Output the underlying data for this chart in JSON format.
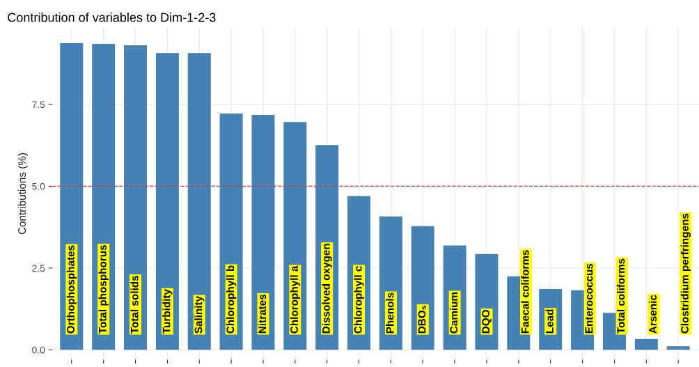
{
  "chart_data": {
    "type": "bar",
    "title": "Contribution of variables to Dim-1-2-3",
    "ylabel": "Contributions (%)",
    "categories": [
      "Orthophosphates",
      "Total phosphorus",
      "Total solids",
      "Turbidity",
      "Salinity",
      "Chlorophyll b",
      "Nitrates",
      "Chlorophyll a",
      "Dissolved oxygen",
      "Chlorophyll c",
      "Phenols",
      "DBO₅",
      "Camium",
      "DQO",
      "Faecal coliforms",
      "Lead",
      "Enterococcus",
      "Total coliforms",
      "Arsenic",
      "Clostridium perfringens"
    ],
    "values": [
      9.37,
      9.35,
      9.31,
      9.07,
      9.07,
      7.22,
      7.18,
      6.96,
      6.26,
      4.7,
      4.08,
      3.78,
      3.19,
      2.93,
      2.25,
      1.86,
      1.82,
      1.13,
      0.33,
      0.11
    ],
    "color": "#4682b4",
    "ylim": [
      -0.3,
      9.85
    ],
    "yticks": [
      {
        "value": 0,
        "label": "0.0"
      },
      {
        "value": 2.5,
        "label": "2.5"
      },
      {
        "value": 5,
        "label": "5.0"
      },
      {
        "value": 7.5,
        "label": "7.5"
      }
    ],
    "ref_lines": [
      {
        "axis": "y",
        "value": 5,
        "color": "#b5474a",
        "line_style": "dashed"
      }
    ],
    "grid": true
  }
}
